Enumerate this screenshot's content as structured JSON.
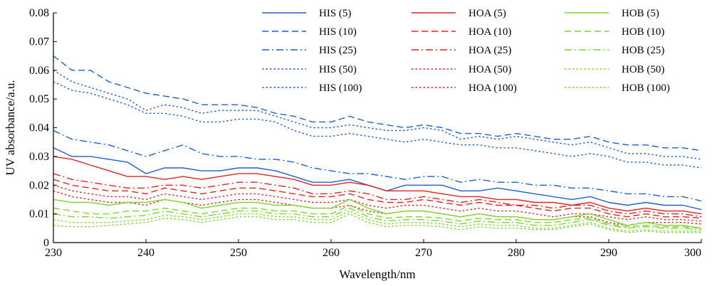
{
  "chart_data": {
    "type": "line",
    "title": "",
    "xlabel": "Wavelength/nm",
    "ylabel": "UV absorbance/a.u.",
    "xlim": [
      230,
      300
    ],
    "ylim": [
      0,
      0.08
    ],
    "xticks": [
      "230",
      "240",
      "250",
      "260",
      "270",
      "280",
      "290",
      "300"
    ],
    "yticks": [
      "0",
      "0.01",
      "0.02",
      "0.03",
      "0.04",
      "0.05",
      "0.06",
      "0.07",
      "0.08"
    ],
    "x": [
      230,
      232,
      234,
      236,
      238,
      240,
      242,
      244,
      246,
      248,
      250,
      252,
      254,
      256,
      258,
      260,
      262,
      264,
      266,
      268,
      270,
      272,
      274,
      276,
      278,
      280,
      282,
      284,
      286,
      288,
      290,
      292,
      294,
      296,
      298,
      300
    ],
    "grid": false,
    "legend_position": "top-right",
    "colors": {
      "HIS": "#1f5fd1",
      "HOA": "#e32222",
      "HOB": "#7dd72a"
    },
    "series": [
      {
        "name": "HIS (5)",
        "group": "HIS",
        "dash": "solid",
        "values": [
          0.033,
          0.03,
          0.03,
          0.029,
          0.028,
          0.024,
          0.026,
          0.026,
          0.025,
          0.025,
          0.026,
          0.026,
          0.025,
          0.023,
          0.021,
          0.021,
          0.022,
          0.02,
          0.018,
          0.02,
          0.02,
          0.02,
          0.018,
          0.018,
          0.019,
          0.018,
          0.017,
          0.016,
          0.015,
          0.016,
          0.014,
          0.013,
          0.014,
          0.013,
          0.013,
          0.0115
        ]
      },
      {
        "name": "HIS (10)",
        "group": "HIS",
        "dash": "dash",
        "values": [
          0.065,
          0.06,
          0.06,
          0.056,
          0.054,
          0.052,
          0.051,
          0.05,
          0.048,
          0.048,
          0.048,
          0.047,
          0.045,
          0.044,
          0.042,
          0.042,
          0.044,
          0.042,
          0.041,
          0.04,
          0.041,
          0.04,
          0.038,
          0.038,
          0.037,
          0.038,
          0.037,
          0.036,
          0.036,
          0.037,
          0.035,
          0.034,
          0.034,
          0.033,
          0.033,
          0.032
        ]
      },
      {
        "name": "HIS (25)",
        "group": "HIS",
        "dash": "dashdot",
        "values": [
          0.039,
          0.036,
          0.035,
          0.034,
          0.032,
          0.03,
          0.032,
          0.034,
          0.031,
          0.03,
          0.03,
          0.029,
          0.029,
          0.028,
          0.026,
          0.025,
          0.024,
          0.024,
          0.023,
          0.022,
          0.023,
          0.023,
          0.021,
          0.022,
          0.021,
          0.021,
          0.02,
          0.02,
          0.019,
          0.019,
          0.018,
          0.017,
          0.017,
          0.016,
          0.016,
          0.0145
        ]
      },
      {
        "name": "HIS (50)",
        "group": "HIS",
        "dash": "dot",
        "values": [
          0.06,
          0.056,
          0.054,
          0.052,
          0.05,
          0.046,
          0.048,
          0.047,
          0.045,
          0.046,
          0.046,
          0.046,
          0.044,
          0.042,
          0.04,
          0.04,
          0.041,
          0.04,
          0.039,
          0.039,
          0.04,
          0.039,
          0.036,
          0.037,
          0.036,
          0.037,
          0.036,
          0.035,
          0.034,
          0.035,
          0.033,
          0.031,
          0.031,
          0.03,
          0.03,
          0.029
        ]
      },
      {
        "name": "HIS (100)",
        "group": "HIS",
        "dash": "dot",
        "values": [
          0.056,
          0.053,
          0.052,
          0.05,
          0.048,
          0.045,
          0.045,
          0.044,
          0.042,
          0.042,
          0.043,
          0.043,
          0.042,
          0.039,
          0.037,
          0.037,
          0.038,
          0.037,
          0.036,
          0.035,
          0.036,
          0.035,
          0.034,
          0.034,
          0.033,
          0.033,
          0.032,
          0.031,
          0.03,
          0.031,
          0.03,
          0.028,
          0.028,
          0.027,
          0.027,
          0.026
        ]
      },
      {
        "name": "HOA (5)",
        "group": "HOA",
        "dash": "solid",
        "values": [
          0.03,
          0.029,
          0.027,
          0.025,
          0.023,
          0.023,
          0.022,
          0.023,
          0.022,
          0.023,
          0.024,
          0.024,
          0.023,
          0.022,
          0.02,
          0.02,
          0.021,
          0.02,
          0.018,
          0.018,
          0.018,
          0.017,
          0.016,
          0.016,
          0.015,
          0.015,
          0.014,
          0.014,
          0.013,
          0.014,
          0.012,
          0.011,
          0.012,
          0.011,
          0.011,
          0.01
        ]
      },
      {
        "name": "HOA (10)",
        "group": "HOA",
        "dash": "dash",
        "values": [
          0.022,
          0.02,
          0.019,
          0.018,
          0.018,
          0.017,
          0.019,
          0.018,
          0.017,
          0.018,
          0.019,
          0.019,
          0.018,
          0.017,
          0.016,
          0.016,
          0.017,
          0.015,
          0.014,
          0.014,
          0.015,
          0.014,
          0.013,
          0.014,
          0.013,
          0.013,
          0.012,
          0.011,
          0.012,
          0.012,
          0.01,
          0.009,
          0.01,
          0.009,
          0.009,
          0.0085
        ]
      },
      {
        "name": "HOA (25)",
        "group": "HOA",
        "dash": "dashdot",
        "values": [
          0.024,
          0.022,
          0.021,
          0.02,
          0.019,
          0.019,
          0.02,
          0.02,
          0.019,
          0.02,
          0.021,
          0.021,
          0.02,
          0.019,
          0.017,
          0.017,
          0.018,
          0.017,
          0.015,
          0.015,
          0.016,
          0.015,
          0.014,
          0.015,
          0.014,
          0.013,
          0.013,
          0.012,
          0.013,
          0.013,
          0.011,
          0.01,
          0.011,
          0.01,
          0.01,
          0.009
        ]
      },
      {
        "name": "HOA (50)",
        "group": "HOA",
        "dash": "dot",
        "values": [
          0.02,
          0.018,
          0.017,
          0.016,
          0.016,
          0.015,
          0.017,
          0.016,
          0.015,
          0.016,
          0.017,
          0.017,
          0.016,
          0.015,
          0.014,
          0.014,
          0.015,
          0.013,
          0.012,
          0.013,
          0.013,
          0.012,
          0.011,
          0.012,
          0.011,
          0.011,
          0.01,
          0.009,
          0.01,
          0.01,
          0.009,
          0.008,
          0.009,
          0.008,
          0.008,
          0.0075
        ]
      },
      {
        "name": "HOA (100)",
        "group": "HOA",
        "dash": "dot",
        "values": [
          0.018,
          0.016,
          0.015,
          0.014,
          0.014,
          0.013,
          0.015,
          0.014,
          0.013,
          0.014,
          0.015,
          0.015,
          0.014,
          0.013,
          0.012,
          0.012,
          0.013,
          0.011,
          0.01,
          0.011,
          0.011,
          0.01,
          0.009,
          0.01,
          0.009,
          0.009,
          0.008,
          0.008,
          0.009,
          0.009,
          0.007,
          0.006,
          0.007,
          0.007,
          0.007,
          0.0065
        ]
      },
      {
        "name": "HOB (5)",
        "group": "HOB",
        "dash": "solid",
        "values": [
          0.015,
          0.014,
          0.014,
          0.013,
          0.014,
          0.014,
          0.015,
          0.014,
          0.012,
          0.013,
          0.014,
          0.014,
          0.013,
          0.013,
          0.012,
          0.012,
          0.015,
          0.012,
          0.01,
          0.011,
          0.011,
          0.01,
          0.009,
          0.01,
          0.009,
          0.009,
          0.008,
          0.008,
          0.009,
          0.01,
          0.008,
          0.006,
          0.007,
          0.006,
          0.006,
          0.005
        ]
      },
      {
        "name": "HOB (10)",
        "group": "HOB",
        "dash": "dash",
        "values": [
          0.012,
          0.011,
          0.01,
          0.01,
          0.011,
          0.011,
          0.012,
          0.011,
          0.01,
          0.011,
          0.012,
          0.012,
          0.011,
          0.011,
          0.01,
          0.01,
          0.013,
          0.01,
          0.0085,
          0.009,
          0.009,
          0.0085,
          0.0075,
          0.0085,
          0.008,
          0.008,
          0.007,
          0.007,
          0.008,
          0.0085,
          0.0065,
          0.0055,
          0.006,
          0.0055,
          0.0055,
          0.005
        ]
      },
      {
        "name": "HOB (25)",
        "group": "HOB",
        "dash": "dashdot",
        "values": [
          0.01,
          0.009,
          0.009,
          0.0085,
          0.009,
          0.0095,
          0.011,
          0.01,
          0.009,
          0.01,
          0.011,
          0.011,
          0.01,
          0.01,
          0.009,
          0.009,
          0.012,
          0.009,
          0.0075,
          0.008,
          0.008,
          0.0075,
          0.0065,
          0.0075,
          0.007,
          0.007,
          0.006,
          0.006,
          0.007,
          0.008,
          0.006,
          0.005,
          0.0055,
          0.005,
          0.005,
          0.0045
        ]
      },
      {
        "name": "HOB (50)",
        "group": "HOB",
        "dash": "dot",
        "values": [
          0.008,
          0.007,
          0.007,
          0.007,
          0.0075,
          0.008,
          0.0095,
          0.009,
          0.008,
          0.009,
          0.01,
          0.01,
          0.009,
          0.009,
          0.008,
          0.008,
          0.011,
          0.008,
          0.0065,
          0.007,
          0.007,
          0.0065,
          0.0055,
          0.0065,
          0.006,
          0.006,
          0.005,
          0.005,
          0.006,
          0.007,
          0.005,
          0.004,
          0.0045,
          0.004,
          0.004,
          0.004
        ]
      },
      {
        "name": "HOB (100)",
        "group": "HOB",
        "dash": "dot",
        "values": [
          0.006,
          0.0055,
          0.0055,
          0.006,
          0.0065,
          0.007,
          0.0085,
          0.008,
          0.007,
          0.008,
          0.009,
          0.009,
          0.008,
          0.008,
          0.007,
          0.007,
          0.01,
          0.007,
          0.0055,
          0.006,
          0.006,
          0.0055,
          0.0045,
          0.0055,
          0.005,
          0.005,
          0.0045,
          0.0045,
          0.0055,
          0.0065,
          0.0045,
          0.0035,
          0.004,
          0.0035,
          0.0035,
          0.0035
        ]
      }
    ]
  }
}
